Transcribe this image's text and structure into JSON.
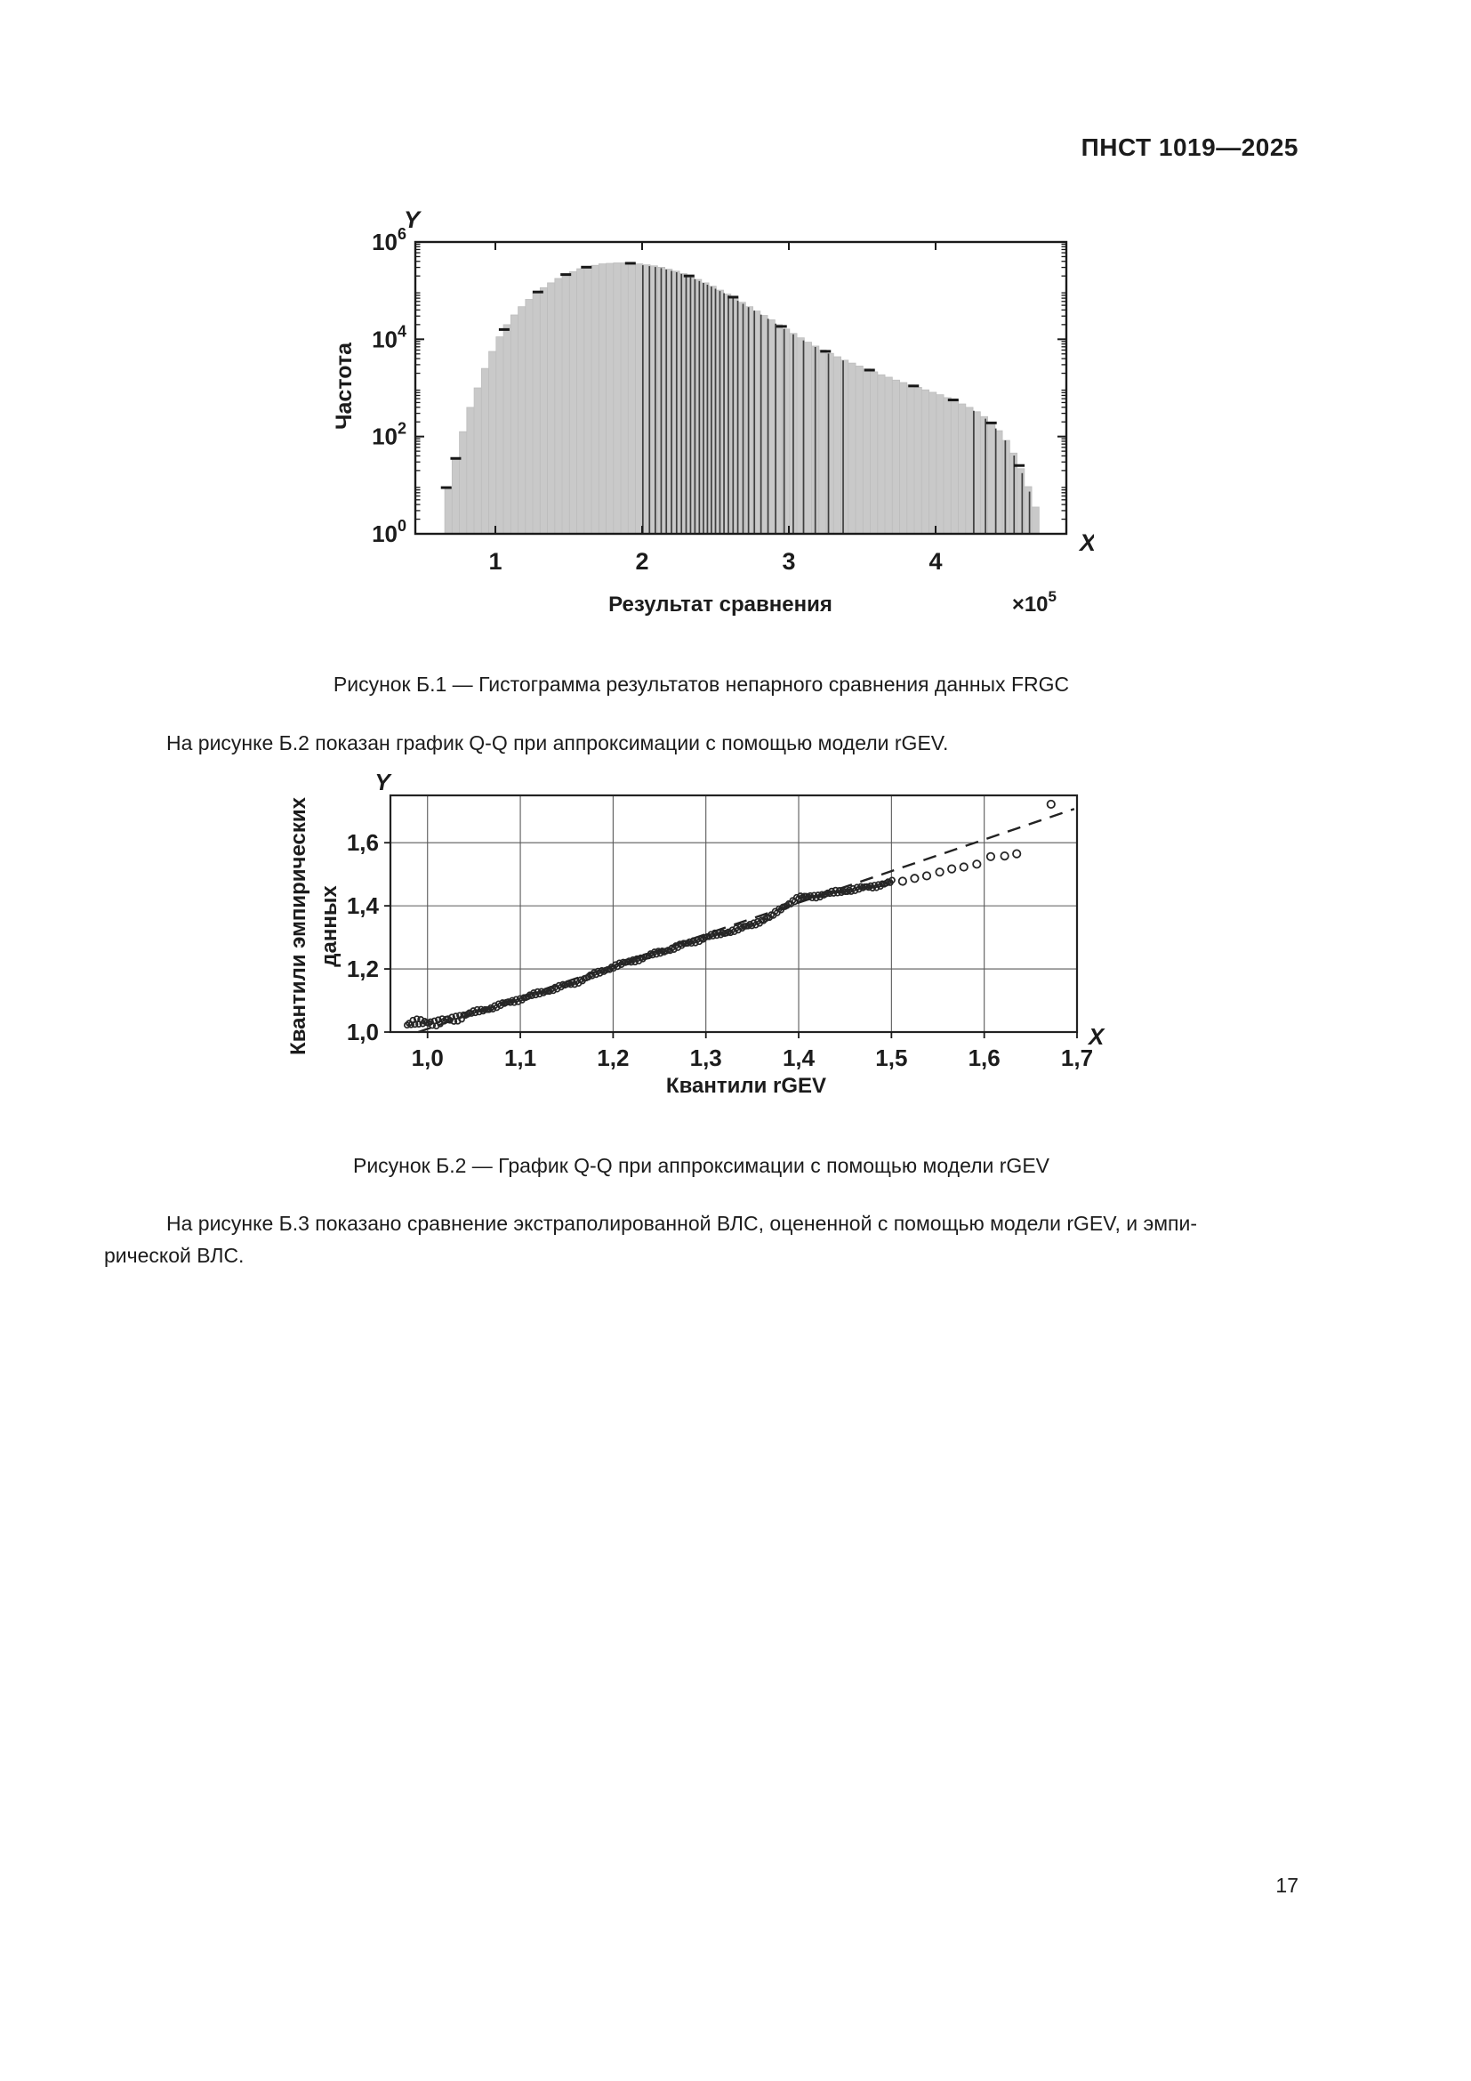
{
  "page": {
    "header": "ПНСТ 1019—2025",
    "page_number": "17"
  },
  "figure_b1": {
    "caption": "Рисунок Б.1 — Гистограмма результатов непарного сравнения данных FRGC"
  },
  "paragraph_1": "На рисунке Б.2 показан график Q-Q при аппроксимации с помощью модели rGEV.",
  "figure_b2": {
    "caption": "Рисунок Б.2 — График Q-Q при аппроксимации с помощью модели rGEV"
  },
  "paragraph_2_line1": "На рисунке Б.3 показано сравнение экстраполированной ВЛС, оцененной с помощью модели rGEV, и эмпи-",
  "paragraph_2_line2": "рической ВЛС.",
  "colors": {
    "bar_fill": "#c9c9c9",
    "bar_edge": "#bdbdbd",
    "dark_line": "#3f3f3f",
    "axis": "#1a1a1a",
    "grid": "#5a5a5a",
    "point": "#262626"
  },
  "chart_data": [
    {
      "type": "bar",
      "title": "Histogram of non-mated comparison scores, log-frequency axis",
      "xlabel": "Результат сравнения",
      "ylabel": "Частота",
      "x_axis_letter": "X",
      "y_axis_letter": "Y",
      "x_multiplier_base": "×10",
      "x_multiplier_exp": "5",
      "x_ticks": [
        1,
        2,
        3,
        4
      ],
      "y_ticks": [
        {
          "log_value": 0,
          "base": "10",
          "exp": "0"
        },
        {
          "log_value": 2,
          "base": "10",
          "exp": "2"
        },
        {
          "log_value": 4,
          "base": "10",
          "exp": "4"
        },
        {
          "log_value": 6,
          "base": "10",
          "exp": "6"
        }
      ],
      "xlim": [
        0.455,
        4.89
      ],
      "ylog_lim": [
        0,
        6
      ],
      "bin_width": 0.05,
      "bins": [
        [
          0.655,
          0.95
        ],
        [
          0.705,
          1.55
        ],
        [
          0.755,
          2.1
        ],
        [
          0.805,
          2.6
        ],
        [
          0.855,
          3.0
        ],
        [
          0.905,
          3.4
        ],
        [
          0.955,
          3.75
        ],
        [
          1.005,
          4.05
        ],
        [
          1.055,
          4.3
        ],
        [
          1.105,
          4.5
        ],
        [
          1.155,
          4.67
        ],
        [
          1.205,
          4.82
        ],
        [
          1.255,
          4.95
        ],
        [
          1.305,
          5.06
        ],
        [
          1.355,
          5.16
        ],
        [
          1.405,
          5.25
        ],
        [
          1.455,
          5.33
        ],
        [
          1.505,
          5.39
        ],
        [
          1.555,
          5.45
        ],
        [
          1.605,
          5.49
        ],
        [
          1.655,
          5.52
        ],
        [
          1.705,
          5.55
        ],
        [
          1.755,
          5.56
        ],
        [
          1.805,
          5.57
        ],
        [
          1.855,
          5.57
        ],
        [
          1.905,
          5.56
        ],
        [
          1.955,
          5.55
        ],
        [
          2.005,
          5.53
        ],
        [
          2.055,
          5.51
        ],
        [
          2.105,
          5.48
        ],
        [
          2.155,
          5.44
        ],
        [
          2.205,
          5.4
        ],
        [
          2.255,
          5.35
        ],
        [
          2.305,
          5.29
        ],
        [
          2.355,
          5.23
        ],
        [
          2.405,
          5.16
        ],
        [
          2.455,
          5.09
        ],
        [
          2.505,
          5.01
        ],
        [
          2.555,
          4.93
        ],
        [
          2.605,
          4.85
        ],
        [
          2.655,
          4.76
        ],
        [
          2.705,
          4.67
        ],
        [
          2.755,
          4.58
        ],
        [
          2.805,
          4.49
        ],
        [
          2.855,
          4.4
        ],
        [
          2.905,
          4.3
        ],
        [
          2.955,
          4.21
        ],
        [
          3.005,
          4.12
        ],
        [
          3.055,
          4.03
        ],
        [
          3.105,
          3.94
        ],
        [
          3.155,
          3.86
        ],
        [
          3.205,
          3.78
        ],
        [
          3.255,
          3.71
        ],
        [
          3.305,
          3.64
        ],
        [
          3.355,
          3.57
        ],
        [
          3.405,
          3.51
        ],
        [
          3.455,
          3.45
        ],
        [
          3.505,
          3.39
        ],
        [
          3.555,
          3.33
        ],
        [
          3.605,
          3.27
        ],
        [
          3.655,
          3.22
        ],
        [
          3.705,
          3.16
        ],
        [
          3.755,
          3.11
        ],
        [
          3.805,
          3.06
        ],
        [
          3.855,
          3.01
        ],
        [
          3.905,
          2.96
        ],
        [
          3.955,
          2.91
        ],
        [
          4.005,
          2.86
        ],
        [
          4.055,
          2.8
        ],
        [
          4.105,
          2.74
        ],
        [
          4.155,
          2.67
        ],
        [
          4.205,
          2.6
        ],
        [
          4.255,
          2.51
        ],
        [
          4.305,
          2.41
        ],
        [
          4.355,
          2.28
        ],
        [
          4.405,
          2.12
        ],
        [
          4.455,
          1.92
        ],
        [
          4.505,
          1.66
        ],
        [
          4.555,
          1.34
        ],
        [
          4.605,
          0.97
        ],
        [
          4.655,
          0.55
        ]
      ],
      "dark_edge_x": [
        2.005,
        2.05,
        2.09,
        2.13,
        2.165,
        2.2,
        2.235,
        2.268,
        2.3,
        2.33,
        2.36,
        2.39,
        2.418,
        2.445,
        2.472,
        2.5,
        2.53,
        2.558,
        2.588,
        2.62,
        2.652,
        2.688,
        2.725,
        2.765,
        2.81,
        2.858,
        2.91,
        2.968,
        3.03,
        3.1,
        3.18,
        3.27,
        3.37,
        4.26,
        4.34,
        4.41,
        4.475,
        4.535,
        4.59,
        4.64
      ],
      "top_marks_x": [
        0.665,
        0.73,
        1.06,
        1.29,
        1.48,
        1.62,
        1.92,
        2.32,
        2.62,
        2.95,
        3.25,
        3.55,
        3.85,
        4.12,
        4.38,
        4.57
      ]
    },
    {
      "type": "scatter",
      "title": "Q-Q plot, rGEV model fit",
      "xlabel": "Квантили rGEV",
      "ylabel_line1": "Квантили эмпирических",
      "ylabel_line2": "данных",
      "x_axis_letter": "X",
      "y_axis_letter": "Y",
      "x_ticks": [
        {
          "v": 1.0,
          "label": "1,0"
        },
        {
          "v": 1.1,
          "label": "1,1"
        },
        {
          "v": 1.2,
          "label": "1,2"
        },
        {
          "v": 1.3,
          "label": "1,3"
        },
        {
          "v": 1.4,
          "label": "1,4"
        },
        {
          "v": 1.5,
          "label": "1,5"
        },
        {
          "v": 1.6,
          "label": "1,6"
        },
        {
          "v": 1.7,
          "label": "1,7"
        }
      ],
      "y_ticks": [
        {
          "v": 1.0,
          "label": "1,0"
        },
        {
          "v": 1.2,
          "label": "1,2"
        },
        {
          "v": 1.4,
          "label": "1,4"
        },
        {
          "v": 1.6,
          "label": "1,6"
        }
      ],
      "xlim": [
        0.96,
        1.7
      ],
      "ylim": [
        1.0,
        1.75
      ],
      "grid_x": [
        1.0,
        1.1,
        1.2,
        1.3,
        1.4,
        1.5,
        1.6
      ],
      "grid_y": [
        1.2,
        1.4,
        1.6
      ],
      "ref_line": {
        "x1": 0.99,
        "y1": 1.0,
        "x2": 1.697,
        "y2": 1.707,
        "style": "dashed"
      },
      "trend_points": [
        [
          0.978,
          1.022
        ],
        [
          0.99,
          1.03
        ],
        [
          1.0,
          1.035
        ],
        [
          1.01,
          1.028
        ],
        [
          1.02,
          1.035
        ],
        [
          1.035,
          1.05
        ],
        [
          1.05,
          1.062
        ],
        [
          1.07,
          1.078
        ],
        [
          1.1,
          1.105
        ],
        [
          1.13,
          1.132
        ],
        [
          1.16,
          1.158
        ],
        [
          1.2,
          1.207
        ],
        [
          1.25,
          1.252
        ],
        [
          1.3,
          1.3
        ],
        [
          1.34,
          1.33
        ],
        [
          1.37,
          1.365
        ],
        [
          1.385,
          1.4
        ],
        [
          1.4,
          1.425
        ],
        [
          1.42,
          1.432
        ],
        [
          1.44,
          1.443
        ],
        [
          1.46,
          1.452
        ],
        [
          1.48,
          1.462
        ],
        [
          1.5,
          1.475
        ]
      ],
      "dense_x_range": [
        0.978,
        1.5
      ],
      "n_dense_points": 250,
      "outlier_points": [
        [
          1.512,
          1.478
        ],
        [
          1.525,
          1.487
        ],
        [
          1.538,
          1.495
        ],
        [
          1.552,
          1.507
        ],
        [
          1.565,
          1.517
        ],
        [
          1.578,
          1.523
        ],
        [
          1.592,
          1.532
        ],
        [
          1.607,
          1.556
        ],
        [
          1.622,
          1.558
        ],
        [
          1.635,
          1.565
        ],
        [
          1.672,
          1.722
        ]
      ]
    }
  ]
}
